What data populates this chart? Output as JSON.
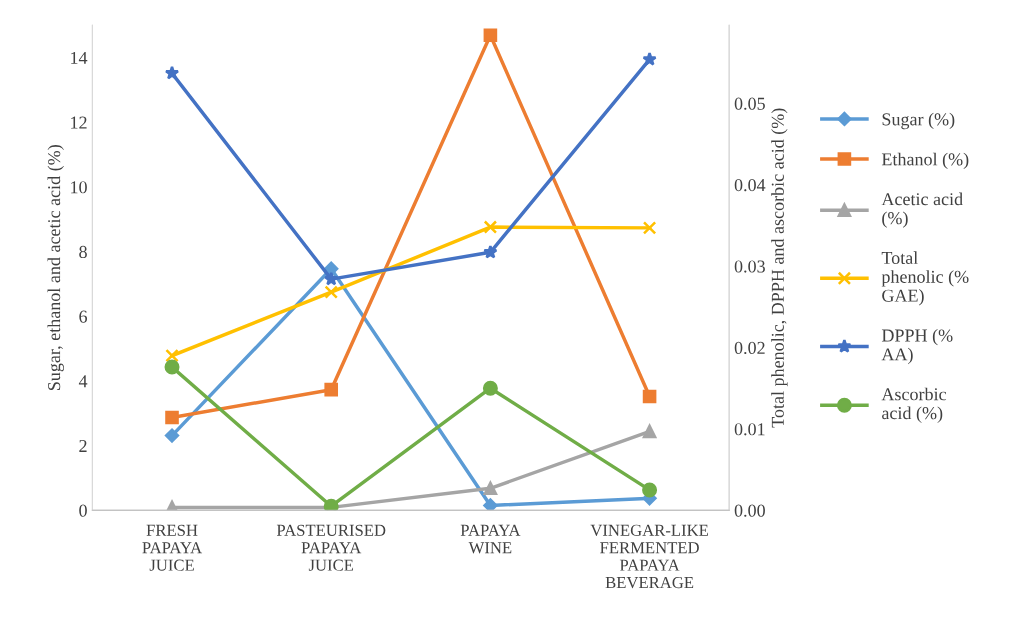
{
  "chart_data": {
    "type": "line",
    "categories": [
      "FRESH\nPAPAYA\nJUICE",
      "PASTEURISED\nPAPAYA\nJUICE",
      "PAPAYA\nWINE",
      "VINEGAR-LIKE\nFERMENTED\nPAPAYA\nBEVERAGE"
    ],
    "ylabel": "Sugar, ethanol and acetic acid (%)",
    "y2label": "Total phenolic, DPPH and ascorbic acid (%)",
    "ylim": [
      0,
      15
    ],
    "yticks": [
      0,
      2,
      4,
      6,
      8,
      10,
      12,
      14
    ],
    "y2lim": [
      0,
      0.0596
    ],
    "y2ticks": [
      {
        "value": 0,
        "label": "0.00"
      },
      {
        "value": 0.01,
        "label": "0.01"
      },
      {
        "value": 0.02,
        "label": "0.02"
      },
      {
        "value": 0.03,
        "label": "0.03"
      },
      {
        "value": 0.04,
        "label": "0.04"
      },
      {
        "value": 0.05,
        "label": "0.05"
      }
    ],
    "grid": false,
    "legend": "right",
    "series": [
      {
        "name": "Sugar (%)",
        "color": "#5b9bd5",
        "marker": "diamond",
        "values": [
          2.31,
          7.47,
          0.15,
          0.37
        ]
      },
      {
        "name": "Ethanol (%)",
        "color": "#ed7d31",
        "marker": "square",
        "values": [
          2.87,
          3.73,
          14.69,
          3.52
        ]
      },
      {
        "name": "Acetic acid\n(%)",
        "color": "#a5a5a5",
        "marker": "triangle",
        "values": [
          0.09,
          0.09,
          0.68,
          2.44
        ]
      },
      {
        "name": "Total\nphenolic (%\nGAE)",
        "color": "#ffc000",
        "marker": "cross",
        "axis": "y2",
        "values": [
          0.019,
          0.0268,
          0.0348,
          0.0347
        ]
      },
      {
        "name": "DPPH (%\nAA)",
        "color": "#4472c4",
        "marker": "star",
        "axis": "y2",
        "values": [
          0.0537,
          0.0284,
          0.0317,
          0.0554
        ]
      },
      {
        "name": "Ascorbic\nacid (%)",
        "color": "#70ad47",
        "marker": "circle",
        "axis": "y2",
        "values": [
          0.0176,
          0.0005,
          0.015,
          0.0025
        ]
      }
    ]
  }
}
